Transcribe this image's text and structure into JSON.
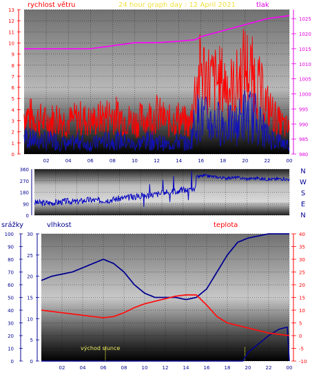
{
  "header": {
    "title": "24 hour graph day : 12 April 2021",
    "title_color": "#f0e040"
  },
  "colors": {
    "wind": "#ff2020",
    "gust_fill": "#ff0000",
    "pressure": "#ff00ff",
    "direction": "#0000c0",
    "humidity": "#000090",
    "temperature": "#ff1010",
    "rain": "#000090",
    "sunrise_marker": "#e0e040",
    "grid": "#000000"
  },
  "chart_data": [
    {
      "id": "wind-pressure",
      "type": "line",
      "labels": {
        "left": "rychlost větru",
        "right": "tlak"
      },
      "x_ticks": [
        "02",
        "04",
        "06",
        "08",
        "10",
        "12",
        "14",
        "16",
        "18",
        "20",
        "22",
        "00"
      ],
      "y_left_ticks": [
        "0",
        "1",
        "2",
        "3",
        "4",
        "5",
        "6",
        "7",
        "8",
        "9",
        "10",
        "11",
        "12",
        "13"
      ],
      "y_left_range": [
        0,
        13
      ],
      "y_right_ticks": [
        "980",
        "985",
        "990",
        "995",
        "1000",
        "1005",
        "1010",
        "1015",
        "1020",
        "1025"
      ],
      "y_right_range": [
        980,
        1028
      ],
      "grid": true,
      "series": [
        {
          "key": "pressure",
          "x": [
            0,
            2,
            4,
            6,
            8,
            10,
            12,
            14,
            15.5,
            16,
            17,
            18,
            19,
            20,
            21,
            22,
            23,
            24
          ],
          "values": [
            1015,
            1015,
            1015,
            1015,
            1016,
            1017,
            1017,
            1017.5,
            1018,
            1019,
            1020,
            1021,
            1022,
            1023,
            1024,
            1025,
            1025.5,
            1026
          ]
        },
        {
          "key": "wind_gust_envelope",
          "x": [
            0,
            1,
            2,
            3,
            4,
            5,
            6,
            7,
            8,
            9,
            10,
            11,
            12,
            13,
            14,
            15,
            15.5,
            16,
            17,
            18,
            19,
            20,
            21,
            22,
            23,
            24
          ],
          "values": [
            5,
            4.5,
            4,
            4.5,
            4,
            4.5,
            4,
            4.5,
            5,
            4.5,
            4,
            4.5,
            5,
            4,
            4.5,
            3.5,
            8,
            10.5,
            9,
            9,
            8,
            11,
            9,
            6,
            4,
            3
          ]
        },
        {
          "key": "wind_average",
          "x": [
            0,
            1,
            2,
            3,
            4,
            5,
            6,
            7,
            8,
            9,
            10,
            11,
            12,
            13,
            14,
            15,
            15.5,
            16,
            17,
            18,
            19,
            20,
            21,
            22,
            23,
            24
          ],
          "values": [
            2,
            1.5,
            1.5,
            1.5,
            1,
            1.5,
            1,
            1.5,
            1.5,
            1.5,
            1,
            1.5,
            1.5,
            1,
            1.5,
            1,
            4,
            4,
            3.5,
            3.5,
            3,
            4.5,
            4,
            2,
            1.5,
            1
          ]
        }
      ]
    },
    {
      "id": "wind-direction",
      "type": "line",
      "labels": {
        "right": [
          "N",
          "W",
          "S",
          "E",
          "N"
        ]
      },
      "x_ticks": [
        "02",
        "04",
        "06",
        "08",
        "10",
        "12",
        "14",
        "16",
        "18",
        "20",
        "22",
        "00"
      ],
      "y_left_ticks": [
        "0",
        "90",
        "180",
        "270",
        "360"
      ],
      "y_left_range": [
        0,
        360
      ],
      "grid": true,
      "series": [
        {
          "key": "direction",
          "x": [
            0,
            1,
            2,
            3,
            4,
            5,
            6,
            7,
            8,
            9,
            10,
            11,
            12,
            13,
            14,
            15,
            15.3,
            16,
            17,
            18,
            19,
            20,
            21,
            22,
            23,
            24
          ],
          "values": [
            100,
            95,
            100,
            110,
            105,
            120,
            115,
            120,
            130,
            140,
            150,
            160,
            170,
            185,
            200,
            190,
            300,
            310,
            300,
            290,
            295,
            285,
            290,
            280,
            285,
            280
          ]
        }
      ]
    },
    {
      "id": "rain-humidity-temperature",
      "type": "line",
      "labels": {
        "rain": "srážky",
        "humidity": "vlhkost",
        "temperature": "teplota",
        "sunrise": "východ slunce"
      },
      "x_ticks": [
        "02",
        "04",
        "06",
        "08",
        "10",
        "12",
        "14",
        "16",
        "18",
        "20",
        "22",
        "00"
      ],
      "y_rain_ticks": [
        "0",
        "10",
        "20",
        "30",
        "40",
        "50",
        "60",
        "70",
        "80",
        "90",
        "100"
      ],
      "y_humidity_ticks": [
        "0",
        "5",
        "10",
        "15",
        "20",
        "25",
        "30"
      ],
      "y_temp_ticks": [
        "-10",
        "-5",
        "0",
        "5",
        "10",
        "15",
        "20",
        "25",
        "30",
        "35",
        "40"
      ],
      "y_temp_range": [
        -10,
        40
      ],
      "y_humidity_range": [
        0,
        30
      ],
      "sunrise_hour": 6.2,
      "sunset_hour": 19.7,
      "grid": true,
      "series": [
        {
          "key": "humidity",
          "x": [
            0,
            1,
            2,
            3,
            4,
            5,
            6,
            7,
            8,
            9,
            10,
            11,
            12,
            13,
            14,
            15,
            16,
            17,
            18,
            19,
            20,
            21,
            22,
            23,
            24
          ],
          "values": [
            19,
            20,
            20.5,
            21,
            22,
            23,
            24,
            23,
            21,
            18,
            16,
            15,
            15,
            15,
            14.5,
            15,
            17,
            21,
            25,
            28,
            29,
            29.5,
            30,
            30,
            30
          ]
        },
        {
          "key": "temperature",
          "x": [
            0,
            1,
            2,
            3,
            4,
            5,
            6,
            7,
            8,
            9,
            10,
            11,
            12,
            13,
            14,
            15,
            16,
            17,
            18,
            19,
            20,
            21,
            22,
            23,
            24
          ],
          "values": [
            10,
            9.5,
            9,
            8.5,
            8,
            7.5,
            7,
            7.5,
            9,
            11,
            12.5,
            13.5,
            14.5,
            15.5,
            16,
            16,
            12,
            7.5,
            5,
            4,
            3,
            2,
            1,
            0.5,
            0
          ]
        },
        {
          "key": "rain",
          "x": [
            0,
            19.5,
            20,
            21,
            22,
            23,
            23.8,
            24
          ],
          "values": [
            0,
            0,
            2,
            4,
            6,
            7.5,
            8,
            0
          ]
        }
      ]
    }
  ]
}
